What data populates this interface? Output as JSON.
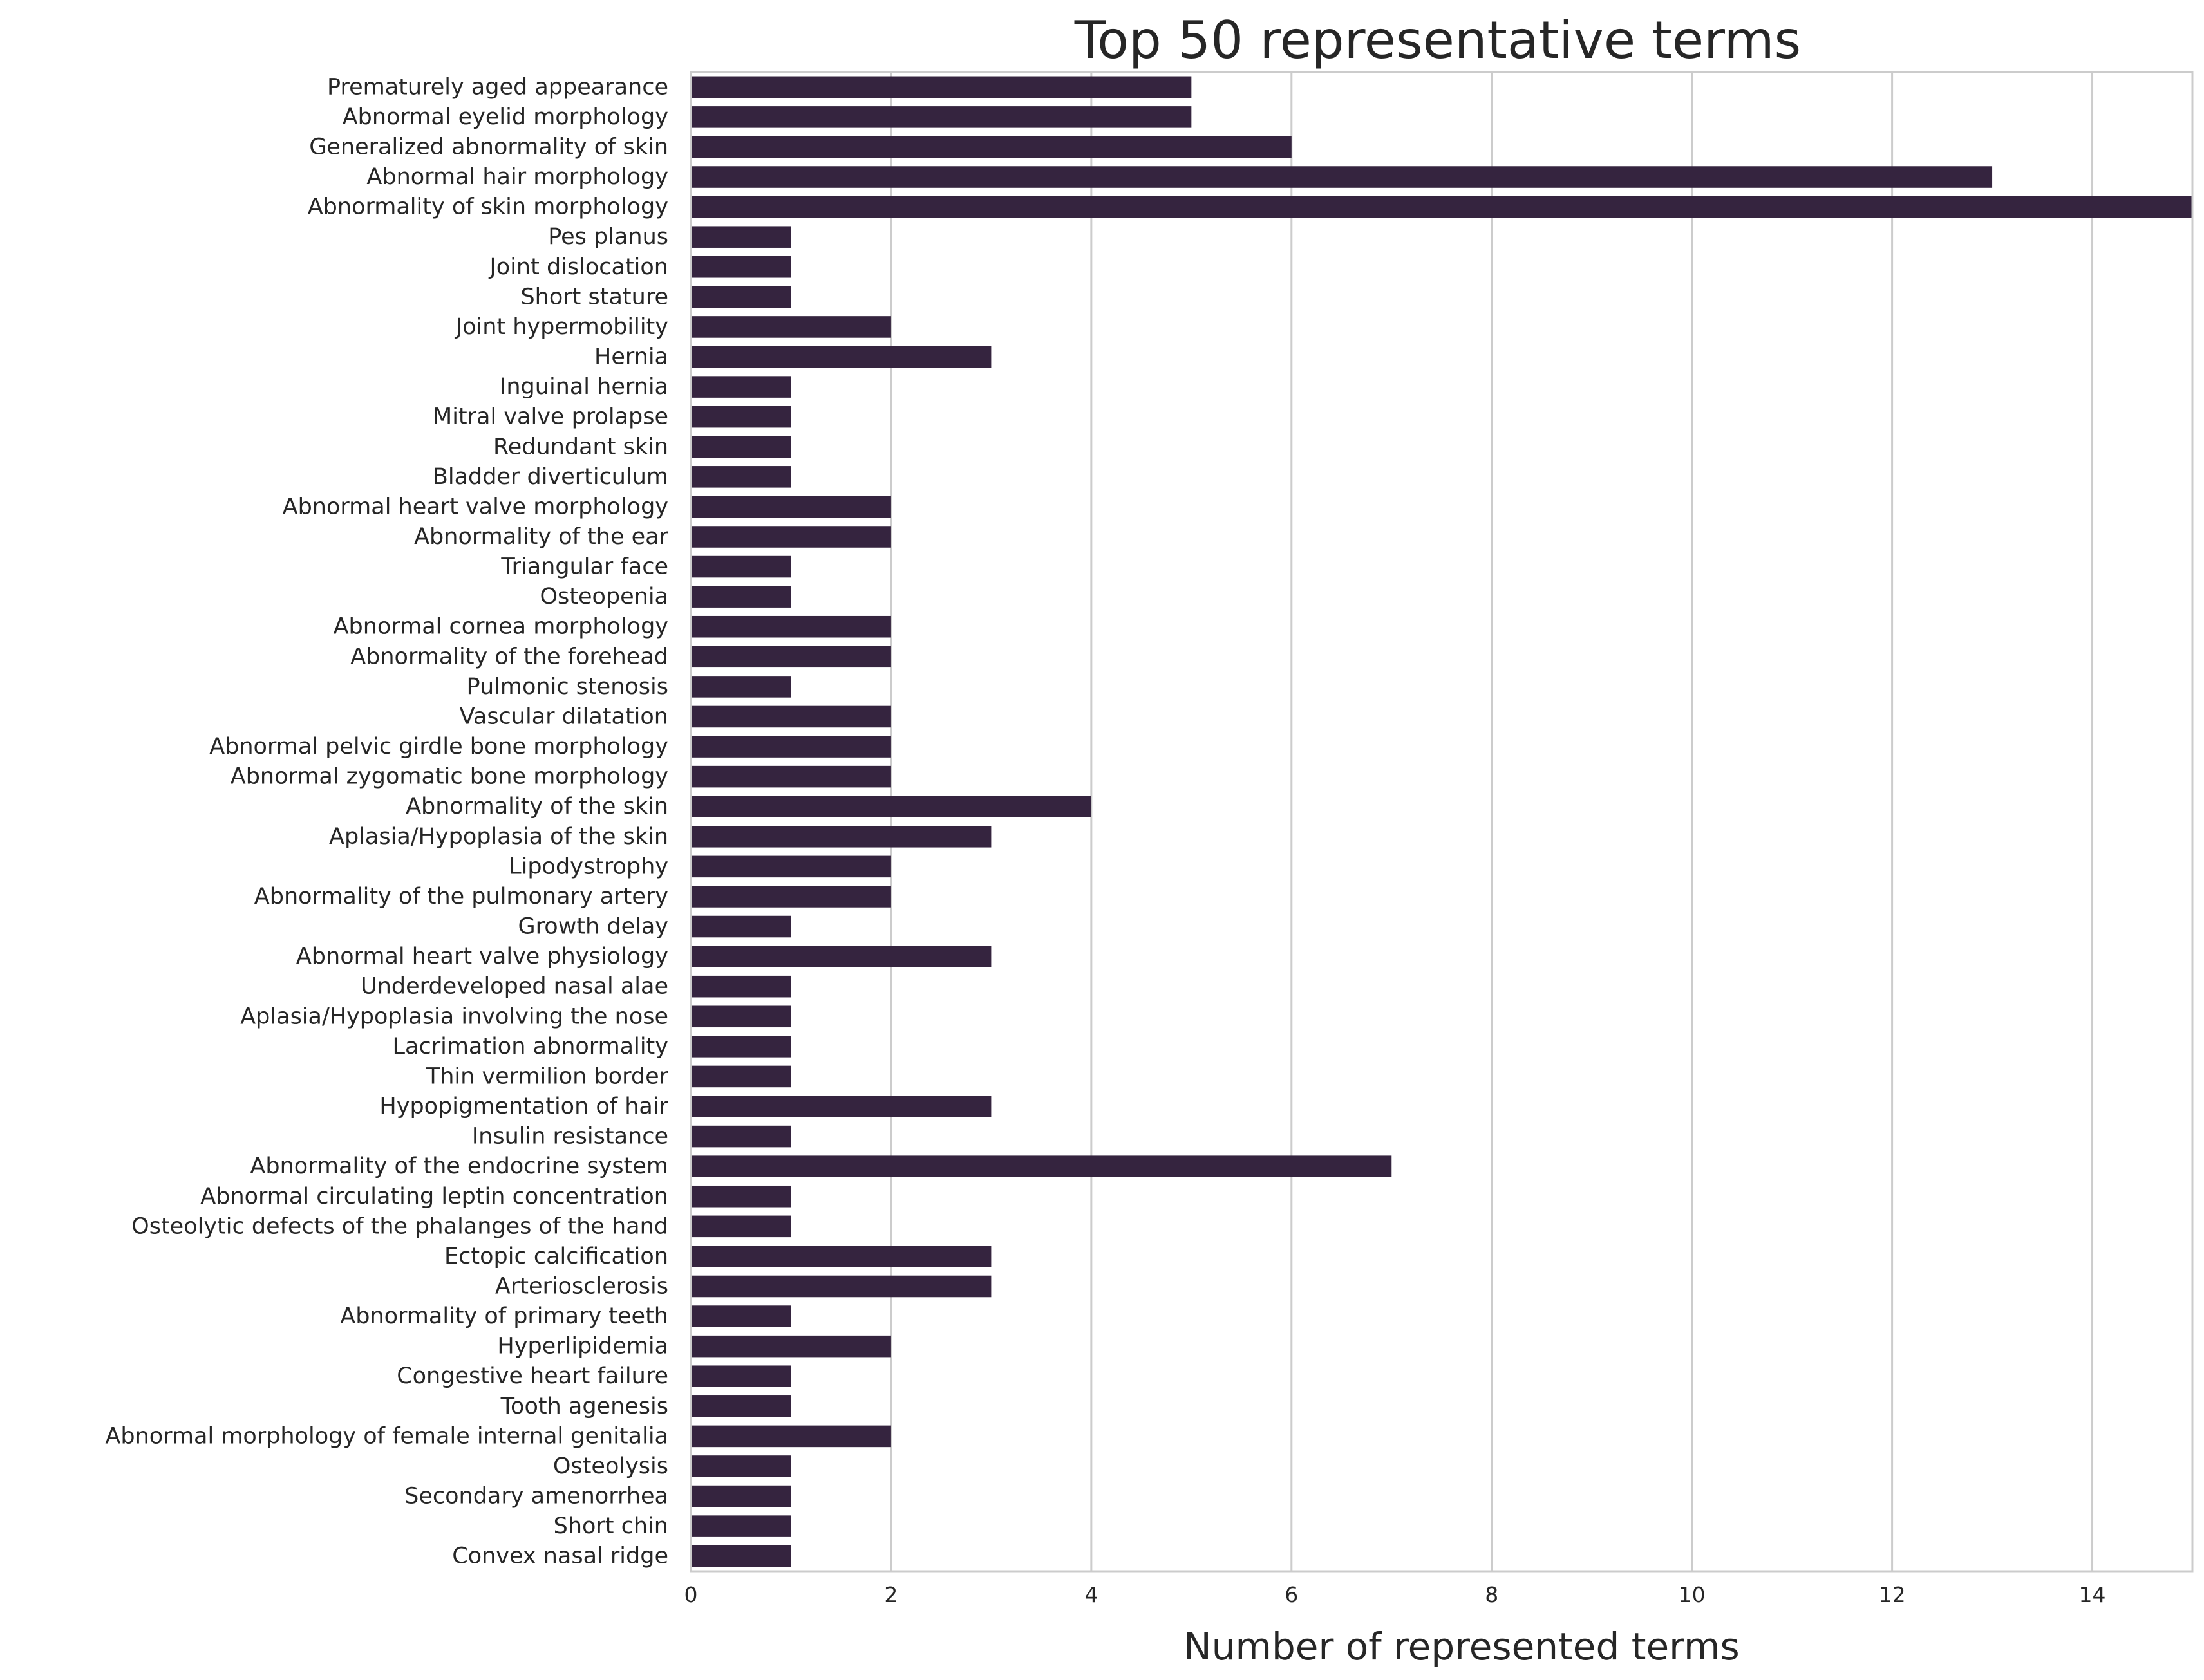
{
  "chart_data": {
    "type": "bar",
    "orientation": "horizontal",
    "title": "Top 50 representative terms",
    "xlabel": "Number of represented terms",
    "ylabel": "",
    "xlim": [
      0,
      15
    ],
    "xticks": [
      0,
      2,
      4,
      6,
      8,
      10,
      12,
      14
    ],
    "grid": "vertical",
    "bar_color": "#35243f",
    "categories": [
      "Prematurely aged appearance",
      "Abnormal eyelid morphology",
      "Generalized abnormality of skin",
      "Abnormal hair morphology",
      "Abnormality of skin morphology",
      "Pes planus",
      "Joint dislocation",
      "Short stature",
      "Joint hypermobility",
      "Hernia",
      "Inguinal hernia",
      "Mitral valve prolapse",
      "Redundant skin",
      "Bladder diverticulum",
      "Abnormal heart valve morphology",
      "Abnormality of the ear",
      "Triangular face",
      "Osteopenia",
      "Abnormal cornea morphology",
      "Abnormality of the forehead",
      "Pulmonic stenosis",
      "Vascular dilatation",
      "Abnormal pelvic girdle bone morphology",
      "Abnormal zygomatic bone morphology",
      "Abnormality of the skin",
      "Aplasia/Hypoplasia of the skin",
      "Lipodystrophy",
      "Abnormality of the pulmonary artery",
      "Growth delay",
      "Abnormal heart valve physiology",
      "Underdeveloped nasal alae",
      "Aplasia/Hypoplasia involving the nose",
      "Lacrimation abnormality",
      "Thin vermilion border",
      "Hypopigmentation of hair",
      "Insulin resistance",
      "Abnormality of the endocrine system",
      "Abnormal circulating leptin concentration",
      "Osteolytic defects of the phalanges of the hand",
      "Ectopic calcification",
      "Arteriosclerosis",
      "Abnormality of primary teeth",
      "Hyperlipidemia",
      "Congestive heart failure",
      "Tooth agenesis",
      "Abnormal morphology of female internal genitalia",
      "Osteolysis",
      "Secondary amenorrhea",
      "Short chin",
      "Convex nasal ridge"
    ],
    "values": [
      5,
      5,
      6,
      13,
      15,
      1,
      1,
      1,
      2,
      3,
      1,
      1,
      1,
      1,
      2,
      2,
      1,
      1,
      2,
      2,
      1,
      2,
      2,
      2,
      4,
      3,
      2,
      2,
      1,
      3,
      1,
      1,
      1,
      1,
      3,
      1,
      7,
      1,
      1,
      3,
      3,
      1,
      2,
      1,
      1,
      2,
      1,
      1,
      1,
      1
    ]
  }
}
